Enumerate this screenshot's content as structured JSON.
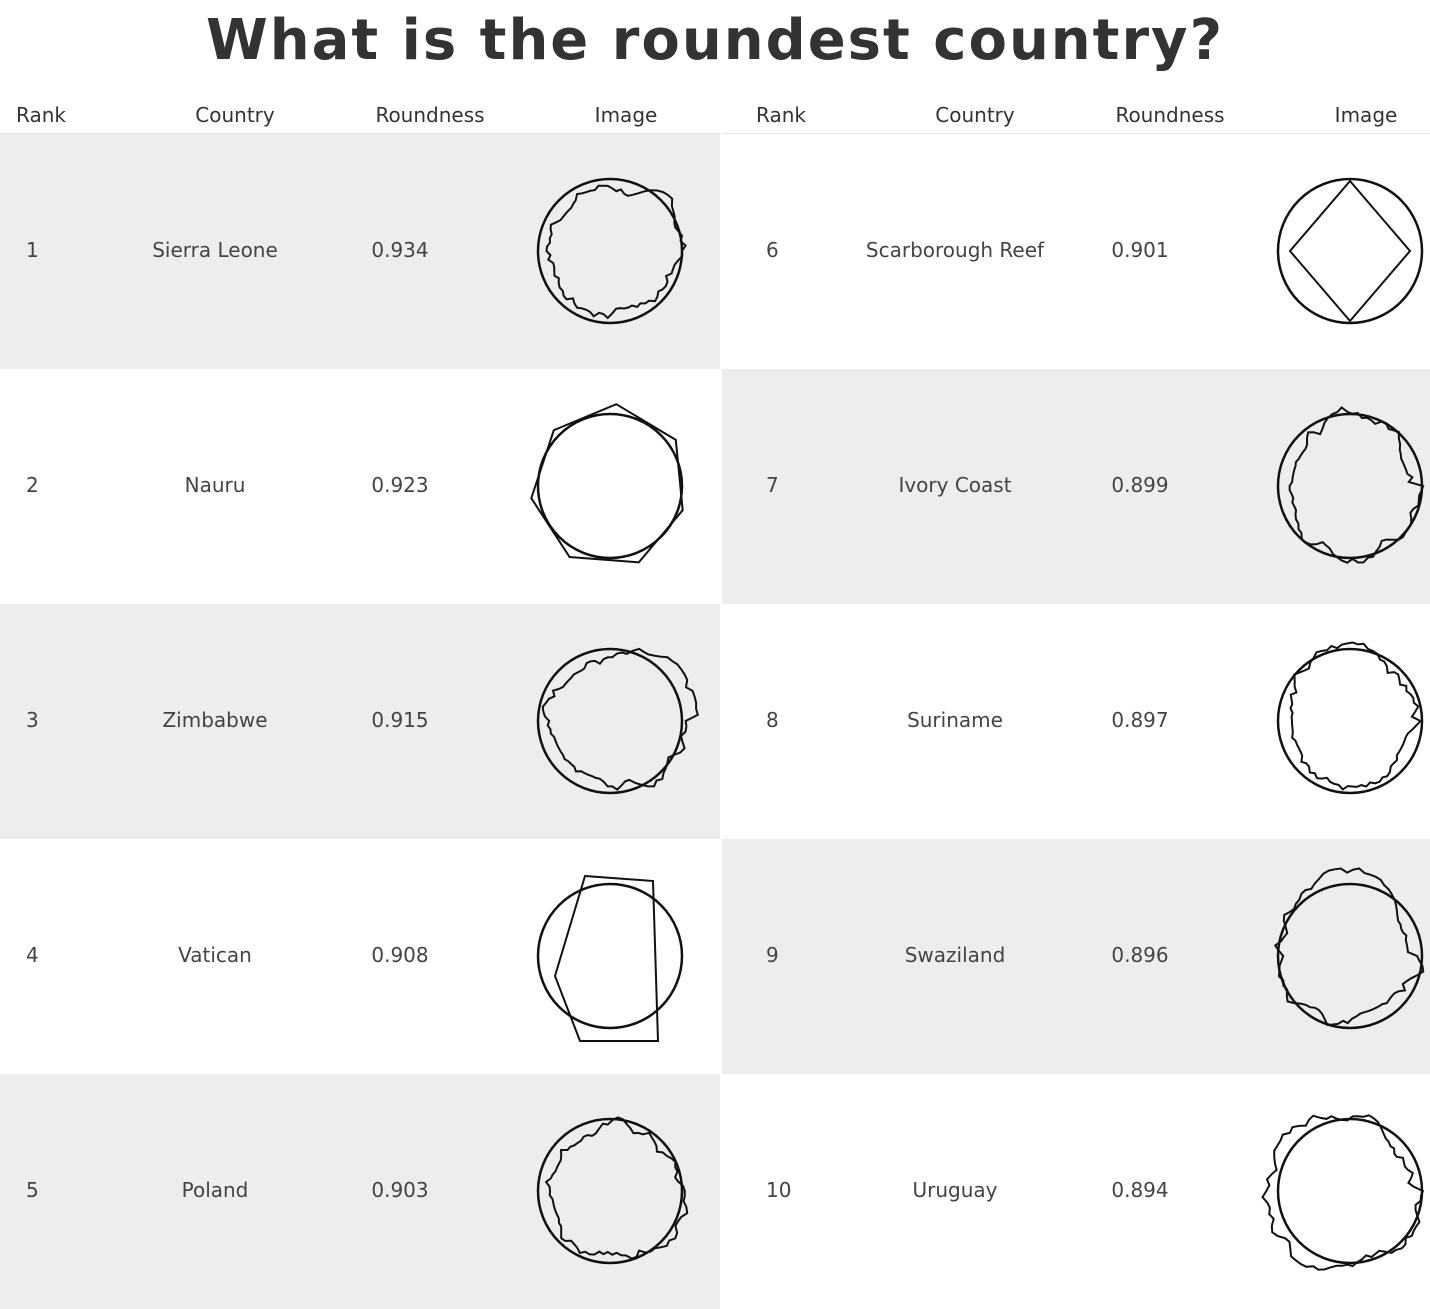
{
  "title": "What is the roundest country?",
  "headers": {
    "rank": "Rank",
    "country": "Country",
    "roundness": "Roundness",
    "image": "Image"
  },
  "rows": [
    {
      "rank": "1",
      "country": "Sierra Leone",
      "roundness": "0.934",
      "shape": "jagged"
    },
    {
      "rank": "2",
      "country": "Nauru",
      "roundness": "0.923",
      "shape": "polygon"
    },
    {
      "rank": "3",
      "country": "Zimbabwe",
      "roundness": "0.915",
      "shape": "jagged"
    },
    {
      "rank": "4",
      "country": "Vatican",
      "roundness": "0.908",
      "shape": "quad"
    },
    {
      "rank": "5",
      "country": "Poland",
      "roundness": "0.903",
      "shape": "jagged"
    },
    {
      "rank": "6",
      "country": "Scarborough Reef",
      "roundness": "0.901",
      "shape": "diamond"
    },
    {
      "rank": "7",
      "country": "Ivory Coast",
      "roundness": "0.899",
      "shape": "jagged"
    },
    {
      "rank": "8",
      "country": "Suriname",
      "roundness": "0.897",
      "shape": "jagged"
    },
    {
      "rank": "9",
      "country": "Swaziland",
      "roundness": "0.896",
      "shape": "jagged"
    },
    {
      "rank": "10",
      "country": "Uruguay",
      "roundness": "0.894",
      "shape": "jagged"
    }
  ]
}
